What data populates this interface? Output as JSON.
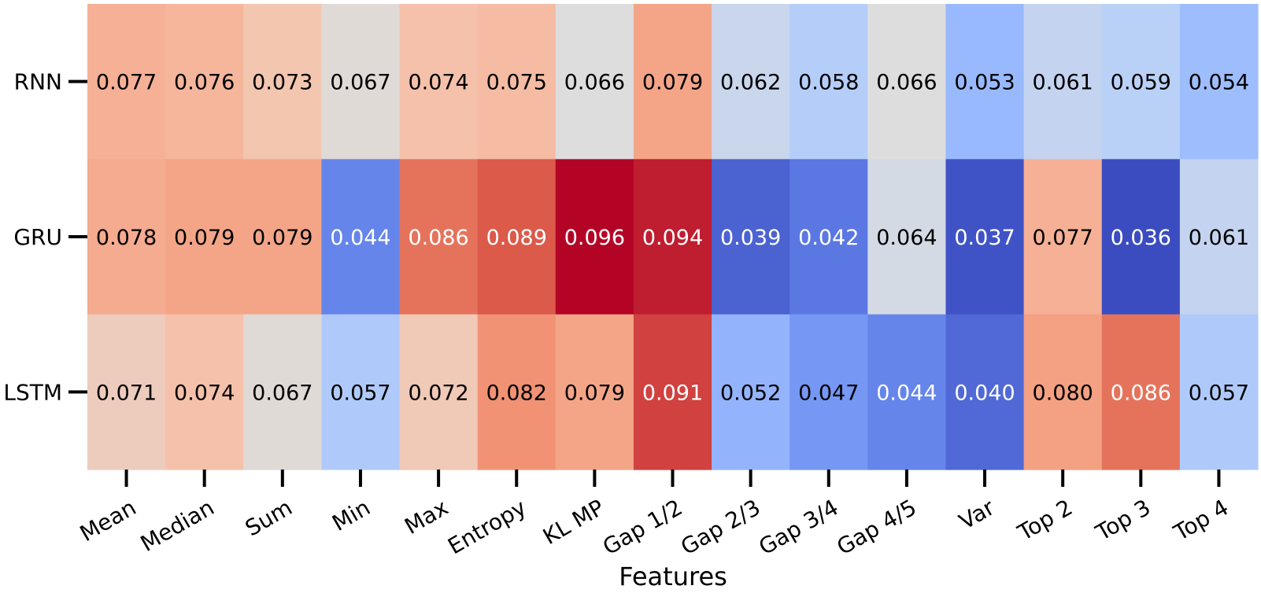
{
  "chart_data": {
    "type": "heatmap",
    "title": "",
    "xlabel": "Features",
    "ylabel": "",
    "rows": [
      "RNN",
      "GRU",
      "LSTM"
    ],
    "columns": [
      "Mean",
      "Median",
      "Sum",
      "Min",
      "Max",
      "Entropy",
      "KL MP",
      "Gap 1/2",
      "Gap 2/3",
      "Gap 3/4",
      "Gap 4/5",
      "Var",
      "Top 2",
      "Top 3",
      "Top 4"
    ],
    "values": [
      [
        0.077,
        0.076,
        0.073,
        0.067,
        0.074,
        0.075,
        0.066,
        0.079,
        0.062,
        0.058,
        0.066,
        0.053,
        0.061,
        0.059,
        0.054
      ],
      [
        0.078,
        0.079,
        0.079,
        0.044,
        0.086,
        0.089,
        0.096,
        0.094,
        0.039,
        0.042,
        0.064,
        0.037,
        0.077,
        0.036,
        0.061
      ],
      [
        0.071,
        0.074,
        0.067,
        0.057,
        0.072,
        0.082,
        0.079,
        0.091,
        0.052,
        0.047,
        0.044,
        0.04,
        0.08,
        0.086,
        0.057
      ]
    ],
    "colormap": "coolwarm",
    "value_range": [
      0.036,
      0.096
    ],
    "annotation_format": "0.000"
  }
}
